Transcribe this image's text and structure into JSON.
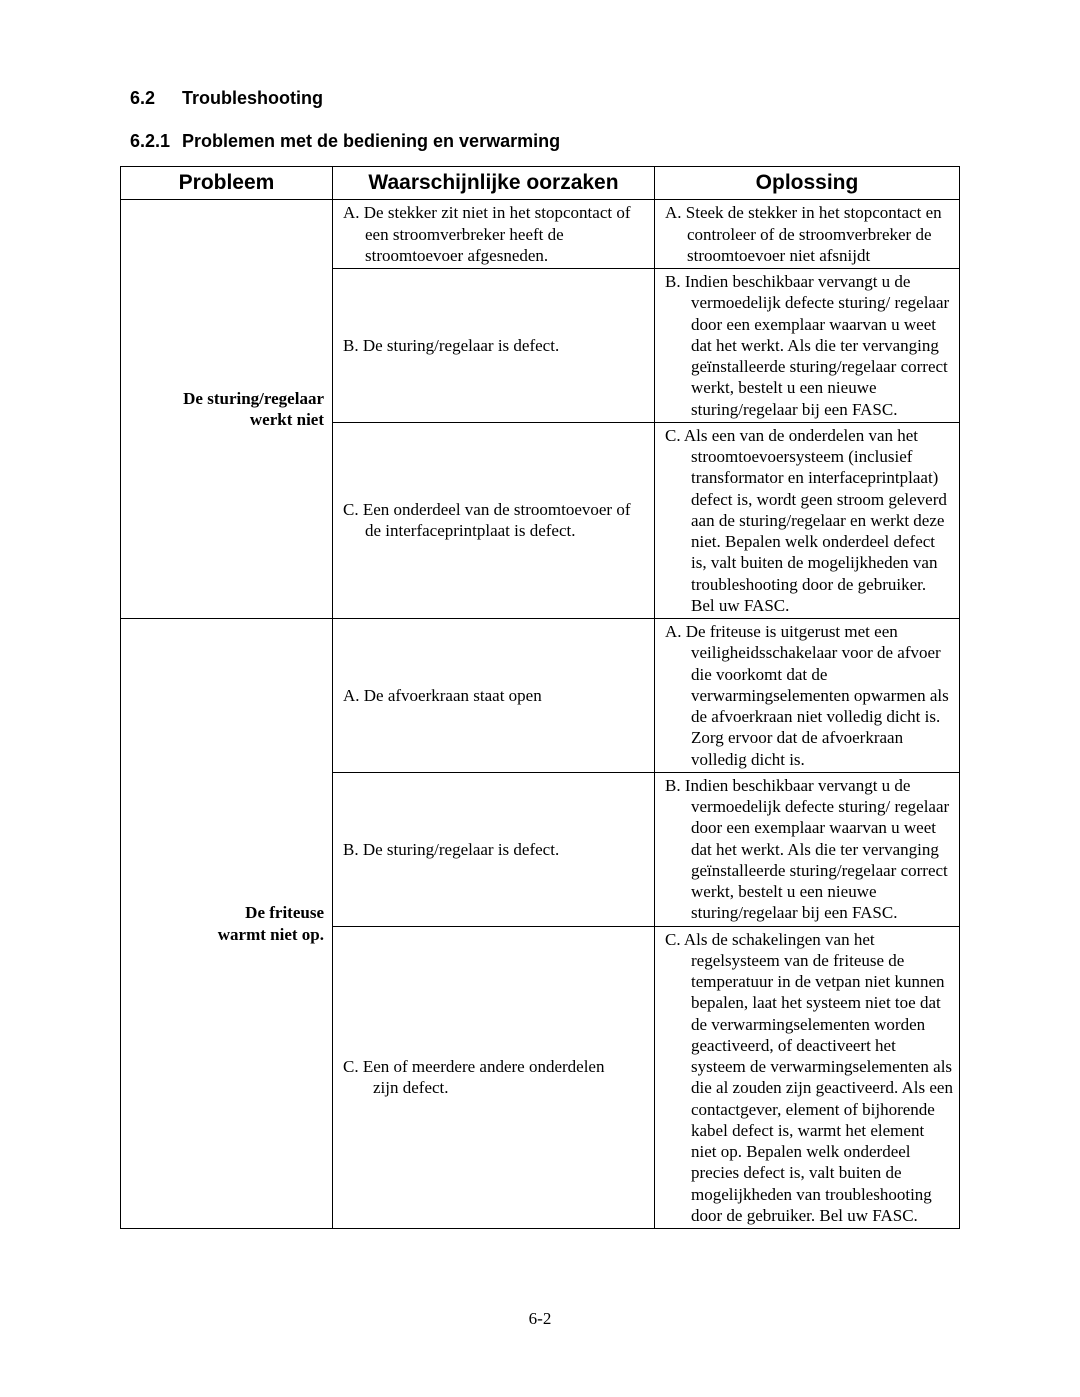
{
  "section": {
    "num": "6.2",
    "title": "Troubleshooting",
    "sub_num": "6.2.1",
    "sub_title": "Problemen met de bediening en verwarming"
  },
  "headers": {
    "problem": "Probleem",
    "cause": "Waarschijnlijke oorzaken",
    "solution": "Oplossing"
  },
  "rows": {
    "p1_label_l1": "De sturing/regelaar",
    "p1_label_l2": "werkt niet",
    "p1a_cause": "A. De stekker zit niet in het stopcontact of een stroomverbreker heeft de stroomtoevoer afgesneden.",
    "p1a_sol": "A. Steek de stekker in het stopcontact en controleer of de stroomverbreker de stroomtoevoer niet afsnijdt",
    "p1b_cause": "B. De sturing/regelaar is defect.",
    "p1b_sol": "B.  Indien beschikbaar vervangt u de vermoedelijk defecte sturing/ regelaar door een exemplaar waarvan u weet dat het werkt. Als die ter vervanging geïnstalleerde sturing/regelaar correct werkt, bestelt u een nieuwe sturing/regelaar bij een FASC.",
    "p1c_cause": "C. Een onderdeel van de stroomtoevoer of de interfaceprintplaat is defect.",
    "p1c_sol": "C.  Als een van de onderdelen van het stroomtoevoersysteem (inclusief transformator en interfaceprintplaat) defect is, wordt geen stroom geleverd aan de sturing/regelaar en werkt deze niet. Bepalen welk onderdeel defect is, valt buiten de mogelijkheden van troubleshooting door de gebruiker. Bel uw FASC.",
    "p2_label_l1": "De friteuse",
    "p2_label_l2": "warmt niet op.",
    "p2a_cause": "A. De afvoerkraan staat open",
    "p2a_sol": "A.  De friteuse is uitgerust met een veiligheidsschakelaar voor de afvoer die voorkomt dat de verwarmingselementen opwarmen als de afvoerkraan niet volledig dicht is. Zorg ervoor dat de afvoerkraan volledig dicht is.",
    "p2b_cause": "B. De sturing/regelaar is defect.",
    "p2b_sol": "B.  Indien beschikbaar vervangt u de vermoedelijk defecte sturing/ regelaar door een exemplaar waarvan u weet dat het werkt. Als die ter vervanging geïnstalleerde sturing/regelaar correct werkt, bestelt u een nieuwe sturing/regelaar bij een FASC.",
    "p2c_cause_l1": "C.   Een of meerdere andere onderdelen",
    "p2c_cause_l2": "zijn defect.",
    "p2c_sol": "C.  Als de schakelingen van het regelsysteem van de friteuse de temperatuur in de vetpan niet kunnen bepalen, laat het systeem niet toe dat de verwarmingselementen worden geactiveerd, of deactiveert het systeem de verwarmingselementen als die al zouden zijn geactiveerd. Als een contactgever, element of bijhorende kabel defect is, warmt het element niet op. Bepalen welk onderdeel precies defect is, valt buiten de mogelijkheden van troubleshooting door de gebruiker. Bel uw FASC."
  },
  "footer": "6-2"
}
